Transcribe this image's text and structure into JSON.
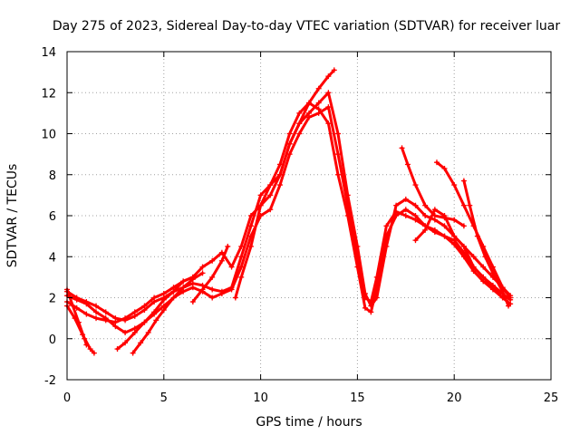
{
  "chart_data": {
    "type": "scatter",
    "title": "Day 275 of 2023, Sidereal Day-to-day VTEC variation (SDTVAR) for receiver luar",
    "xlabel": "GPS time / hours",
    "ylabel": "SDTVAR / TECUs",
    "xlim": [
      0,
      25
    ],
    "ylim": [
      -2,
      14
    ],
    "x_ticks": [
      "0",
      "5",
      "10",
      "15",
      "20",
      "25"
    ],
    "y_ticks": [
      "-2",
      "0",
      "2",
      "4",
      "6",
      "8",
      "10",
      "12",
      "14"
    ],
    "grid": true,
    "marker": "plus",
    "color": "#ff0000",
    "series": [
      {
        "points": [
          [
            0.0,
            2.3
          ],
          [
            0.5,
            2.0
          ],
          [
            1.0,
            1.8
          ],
          [
            1.5,
            1.6
          ],
          [
            2.0,
            1.3
          ],
          [
            2.5,
            1.0
          ],
          [
            3.0,
            0.9
          ],
          [
            3.5,
            1.1
          ],
          [
            4.0,
            1.4
          ],
          [
            4.5,
            1.8
          ],
          [
            5.0,
            2.0
          ],
          [
            5.5,
            2.3
          ],
          [
            6.0,
            2.5
          ],
          [
            6.5,
            2.7
          ],
          [
            7.0,
            2.6
          ],
          [
            7.5,
            2.4
          ],
          [
            8.0,
            2.3
          ],
          [
            8.5,
            2.5
          ],
          [
            9.0,
            4.0
          ],
          [
            9.5,
            5.5
          ],
          [
            10.0,
            7.0
          ],
          [
            10.5,
            7.5
          ],
          [
            11.0,
            8.5
          ],
          [
            11.5,
            10.0
          ],
          [
            12.0,
            11.0
          ],
          [
            12.5,
            11.5
          ],
          [
            13.0,
            11.2
          ],
          [
            13.5,
            10.5
          ],
          [
            14.0,
            8.0
          ],
          [
            14.5,
            6.0
          ],
          [
            15.0,
            3.5
          ],
          [
            15.4,
            1.5
          ],
          [
            15.7,
            1.3
          ],
          [
            16.0,
            2.5
          ],
          [
            16.5,
            5.0
          ],
          [
            17.0,
            6.0
          ],
          [
            17.5,
            6.3
          ],
          [
            18.0,
            6.0
          ],
          [
            18.5,
            5.5
          ],
          [
            19.0,
            5.3
          ],
          [
            19.5,
            5.0
          ],
          [
            20.0,
            4.8
          ],
          [
            20.5,
            4.2
          ],
          [
            21.0,
            3.5
          ],
          [
            21.5,
            3.0
          ],
          [
            22.0,
            2.6
          ],
          [
            22.5,
            2.2
          ],
          [
            22.9,
            1.9
          ]
        ]
      },
      {
        "points": [
          [
            0.0,
            1.8
          ],
          [
            0.5,
            1.5
          ],
          [
            1.0,
            1.2
          ],
          [
            1.5,
            1.0
          ],
          [
            2.0,
            0.9
          ],
          [
            2.5,
            0.8
          ],
          [
            3.0,
            1.0
          ],
          [
            3.5,
            1.3
          ],
          [
            4.0,
            1.6
          ],
          [
            4.5,
            2.0
          ],
          [
            5.0,
            2.2
          ],
          [
            5.5,
            2.5
          ],
          [
            6.0,
            2.8
          ],
          [
            6.5,
            3.0
          ],
          [
            7.0,
            3.5
          ],
          [
            7.5,
            3.8
          ],
          [
            8.0,
            4.2
          ],
          [
            8.5,
            3.5
          ],
          [
            9.0,
            4.5
          ],
          [
            9.5,
            6.0
          ],
          [
            10.0,
            6.5
          ],
          [
            10.5,
            7.0
          ],
          [
            11.0,
            8.0
          ],
          [
            11.5,
            9.5
          ],
          [
            12.0,
            10.5
          ],
          [
            12.5,
            11.0
          ],
          [
            13.0,
            11.5
          ],
          [
            13.5,
            12.0
          ],
          [
            14.0,
            10.0
          ],
          [
            14.5,
            7.0
          ],
          [
            15.0,
            4.5
          ],
          [
            15.4,
            2.2
          ],
          [
            15.7,
            1.6
          ],
          [
            16.0,
            2.0
          ],
          [
            16.5,
            4.5
          ],
          [
            17.0,
            6.5
          ],
          [
            17.5,
            6.8
          ],
          [
            18.0,
            6.5
          ],
          [
            18.5,
            6.0
          ],
          [
            19.0,
            5.8
          ],
          [
            19.5,
            5.5
          ],
          [
            20.0,
            5.0
          ],
          [
            20.5,
            4.5
          ],
          [
            21.0,
            4.0
          ],
          [
            21.5,
            3.5
          ],
          [
            22.0,
            3.0
          ],
          [
            22.5,
            2.5
          ],
          [
            22.9,
            2.1
          ]
        ]
      },
      {
        "points": [
          [
            0.0,
            2.1
          ],
          [
            0.5,
            1.9
          ],
          [
            1.0,
            1.7
          ],
          [
            1.5,
            1.3
          ],
          [
            2.0,
            1.0
          ],
          [
            2.5,
            0.6
          ],
          [
            3.0,
            0.3
          ],
          [
            3.5,
            0.5
          ],
          [
            4.0,
            0.8
          ],
          [
            4.5,
            1.2
          ],
          [
            5.0,
            1.6
          ],
          [
            5.5,
            2.0
          ],
          [
            6.0,
            2.3
          ],
          [
            6.5,
            2.5
          ],
          [
            7.0,
            2.3
          ],
          [
            7.5,
            2.0
          ],
          [
            8.0,
            2.2
          ],
          [
            8.5,
            2.4
          ],
          [
            9.0,
            3.5
          ],
          [
            9.5,
            5.0
          ],
          [
            10.0,
            6.0
          ],
          [
            10.5,
            6.3
          ],
          [
            11.0,
            7.5
          ],
          [
            11.5,
            9.0
          ],
          [
            12.0,
            10.0
          ],
          [
            12.5,
            10.8
          ],
          [
            13.0,
            11.0
          ],
          [
            13.5,
            11.3
          ],
          [
            14.0,
            9.0
          ],
          [
            14.5,
            6.5
          ],
          [
            15.0,
            4.0
          ],
          [
            15.4,
            2.0
          ],
          [
            15.7,
            1.8
          ],
          [
            16.0,
            3.0
          ],
          [
            16.5,
            5.5
          ],
          [
            17.0,
            6.2
          ],
          [
            17.5,
            6.0
          ],
          [
            18.0,
            5.8
          ],
          [
            18.5,
            5.5
          ],
          [
            19.0,
            5.2
          ],
          [
            19.5,
            5.0
          ],
          [
            20.0,
            4.6
          ],
          [
            20.5,
            4.0
          ],
          [
            21.0,
            3.3
          ],
          [
            21.5,
            2.8
          ],
          [
            22.0,
            2.4
          ],
          [
            22.5,
            2.0
          ],
          [
            22.9,
            1.7
          ]
        ]
      },
      {
        "points": [
          [
            0.0,
            1.6
          ],
          [
            0.4,
            1.0
          ],
          [
            0.8,
            0.2
          ],
          [
            1.2,
            -0.5
          ],
          [
            1.4,
            -0.7
          ]
        ]
      },
      {
        "points": [
          [
            0.0,
            2.4
          ],
          [
            0.3,
            1.6
          ],
          [
            0.6,
            0.8
          ],
          [
            0.9,
            0.0
          ],
          [
            1.0,
            -0.3
          ]
        ]
      },
      {
        "points": [
          [
            2.6,
            -0.5
          ],
          [
            3.0,
            -0.2
          ],
          [
            3.5,
            0.3
          ],
          [
            4.0,
            0.8
          ],
          [
            4.5,
            1.3
          ],
          [
            5.0,
            1.9
          ],
          [
            5.5,
            2.3
          ],
          [
            6.0,
            2.8
          ],
          [
            6.5,
            3.0
          ]
        ]
      },
      {
        "points": [
          [
            3.4,
            -0.7
          ],
          [
            3.8,
            -0.2
          ],
          [
            4.2,
            0.3
          ],
          [
            4.6,
            0.9
          ],
          [
            5.0,
            1.4
          ],
          [
            5.5,
            2.0
          ],
          [
            6.0,
            2.5
          ],
          [
            6.5,
            2.9
          ],
          [
            7.0,
            3.2
          ]
        ]
      },
      {
        "points": [
          [
            6.5,
            1.8
          ],
          [
            7.0,
            2.4
          ],
          [
            7.5,
            3.0
          ],
          [
            8.0,
            3.8
          ],
          [
            8.3,
            4.5
          ]
        ]
      },
      {
        "points": [
          [
            8.7,
            2.0
          ],
          [
            9.0,
            3.0
          ],
          [
            9.5,
            4.5
          ],
          [
            10.0,
            6.5
          ],
          [
            10.5,
            7.5
          ],
          [
            11.0,
            8.0
          ],
          [
            11.5,
            9.5
          ],
          [
            12.0,
            10.5
          ],
          [
            12.5,
            11.5
          ],
          [
            13.0,
            12.2
          ],
          [
            13.5,
            12.8
          ],
          [
            13.8,
            13.1
          ]
        ]
      },
      {
        "points": [
          [
            17.3,
            9.3
          ],
          [
            17.6,
            8.5
          ],
          [
            18.0,
            7.5
          ],
          [
            18.5,
            6.5
          ],
          [
            19.0,
            6.0
          ],
          [
            19.5,
            5.9
          ],
          [
            20.0,
            5.8
          ],
          [
            20.5,
            5.5
          ]
        ]
      },
      {
        "points": [
          [
            18.0,
            4.8
          ],
          [
            18.5,
            5.3
          ],
          [
            19.0,
            6.3
          ],
          [
            19.5,
            6.0
          ],
          [
            20.0,
            5.0
          ],
          [
            20.5,
            4.5
          ],
          [
            21.0,
            3.5
          ],
          [
            21.5,
            3.0
          ],
          [
            22.0,
            2.5
          ],
          [
            22.5,
            2.0
          ]
        ]
      },
      {
        "points": [
          [
            19.1,
            8.6
          ],
          [
            19.5,
            8.3
          ],
          [
            20.0,
            7.5
          ],
          [
            20.5,
            6.5
          ],
          [
            21.0,
            5.5
          ],
          [
            21.5,
            4.5
          ],
          [
            22.0,
            3.5
          ],
          [
            22.5,
            2.5
          ],
          [
            22.9,
            2.0
          ]
        ]
      },
      {
        "points": [
          [
            20.5,
            7.7
          ],
          [
            20.8,
            6.5
          ],
          [
            21.2,
            5.0
          ],
          [
            21.6,
            4.0
          ],
          [
            22.0,
            3.2
          ],
          [
            22.5,
            2.3
          ],
          [
            22.8,
            1.6
          ]
        ]
      }
    ]
  }
}
